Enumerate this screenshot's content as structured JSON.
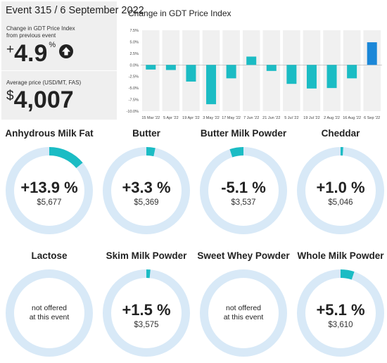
{
  "event": {
    "title": "Event 315 / 6 September 2022",
    "change_label_line1": "Change in GDT Price Index",
    "change_label_line2": "from previous event",
    "change_sign": "+",
    "change_value": "4.9",
    "change_unit": "%",
    "change_direction_icon": "arrow-up-icon",
    "avg_label": "Average price (USD/MT, FAS)",
    "avg_currency": "$",
    "avg_value": "4,007"
  },
  "chart_data": {
    "type": "bar",
    "title": "Change in GDT Price Index",
    "categories": [
      "15 Mar '22",
      "5 Apr '22",
      "19 Apr '22",
      "3 May '22",
      "17 May '22",
      "7 Jun '22",
      "21 Jun '22",
      "5 Jul '22",
      "19 Jul '22",
      "2 Aug '22",
      "16 Aug '22",
      "6 Sep '22"
    ],
    "values": [
      -1.0,
      -1.1,
      -3.6,
      -8.5,
      -2.9,
      1.8,
      -1.3,
      -4.1,
      -5.1,
      -5.0,
      -2.9,
      4.9
    ],
    "ylim": [
      -10,
      7.5
    ],
    "yticks": [
      -10,
      -7.5,
      -5,
      -2.5,
      0,
      2.5,
      5,
      7.5
    ],
    "ytick_labels": [
      "-10.0%",
      "-7.5%",
      "-5.0%",
      "-2.5%",
      "0.0%",
      "2.5%",
      "5.0%",
      "7.5%"
    ],
    "colors": {
      "bar": "#1bbcc4",
      "latest_bar": "#1b87d8",
      "band": "#f0f0f0"
    }
  },
  "products": [
    {
      "name": "Anhydrous Milk Fat",
      "change": "+13.9 %",
      "price": "$5,677",
      "fraction": 0.139,
      "offered": true
    },
    {
      "name": "Butter",
      "change": "+3.3 %",
      "price": "$5,369",
      "fraction": 0.033,
      "offered": true
    },
    {
      "name": "Butter Milk Powder",
      "change": "-5.1 %",
      "price": "$3,537",
      "fraction": -0.051,
      "offered": true
    },
    {
      "name": "Cheddar",
      "change": "+1.0 %",
      "price": "$5,046",
      "fraction": 0.01,
      "offered": true
    },
    {
      "name": "Lactose",
      "note_line1": "not offered",
      "note_line2": "at this event",
      "offered": false
    },
    {
      "name": "Skim Milk Powder",
      "change": "+1.5 %",
      "price": "$3,575",
      "fraction": 0.015,
      "offered": true
    },
    {
      "name": "Sweet Whey Powder",
      "note_line1": "not offered",
      "note_line2": "at this event",
      "offered": false
    },
    {
      "name": "Whole Milk Powder",
      "change": "+5.1 %",
      "price": "$3,610",
      "fraction": 0.051,
      "offered": true
    }
  ],
  "colors": {
    "ring_track": "#d8e9f7",
    "ring_fill": "#1bbcc4",
    "panel_bg": "#efefef"
  }
}
